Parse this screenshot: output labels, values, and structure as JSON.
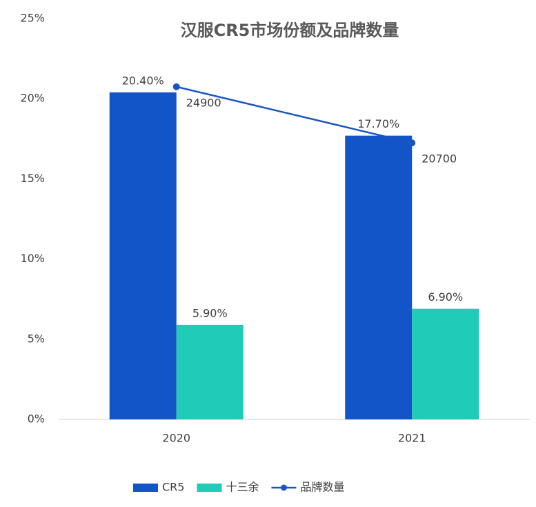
{
  "chart_data": {
    "type": "bar-line",
    "title": "汉服CR5市场份额及品牌数量",
    "categories": [
      "2020",
      "2021"
    ],
    "series": [
      {
        "name": "CR5",
        "type": "bar",
        "color": "#1155c8",
        "values": [
          20.4,
          17.7
        ],
        "value_labels": [
          "20.40%",
          "17.70%"
        ]
      },
      {
        "name": "十三余",
        "type": "bar",
        "color": "#20cbb8",
        "values": [
          5.9,
          6.9
        ],
        "value_labels": [
          "5.90%",
          "6.90%"
        ]
      },
      {
        "name": "品牌数量",
        "type": "line",
        "axis": "y2",
        "color": "#1a56c0",
        "values": [
          24900,
          20700
        ]
      }
    ],
    "ylim": [
      0,
      25
    ],
    "yticks": [
      {
        "value": 0,
        "label": "0%"
      },
      {
        "value": 5,
        "label": "5%"
      },
      {
        "value": 10,
        "label": "10%"
      },
      {
        "value": 15,
        "label": "15%"
      },
      {
        "value": 20,
        "label": "20%"
      },
      {
        "value": 25,
        "label": "25%"
      }
    ],
    "y2lim": [
      0,
      30000
    ],
    "legend": "bottom"
  }
}
